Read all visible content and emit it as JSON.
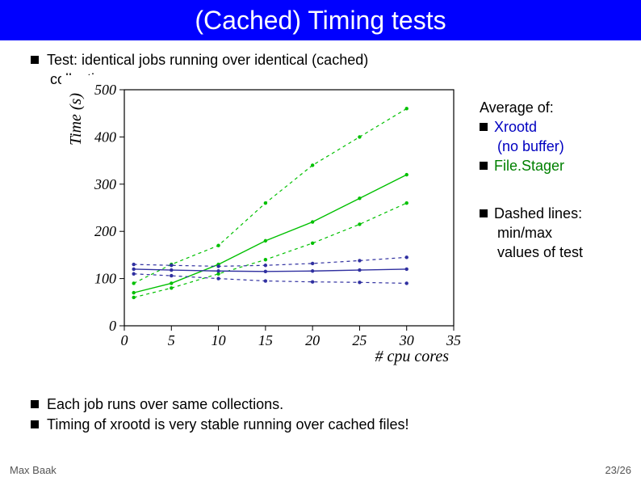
{
  "header": {
    "title": "(Cached) Timing tests"
  },
  "intro": {
    "line1": "Test: identical jobs running over identical (cached)",
    "line2": "collections"
  },
  "side": {
    "avg_label": "Average of:",
    "item1": "Xrootd",
    "item1_sub": "(no buffer)",
    "item2": "File.Stager",
    "dashed1": "Dashed lines:",
    "dashed2": "min/max",
    "dashed3": "values of test"
  },
  "bottom": {
    "b1": "Each job runs over same collections.",
    "b2": "Timing of xrootd is very stable running over cached files!"
  },
  "footer": {
    "author": "Max Baak",
    "page": "23/26"
  },
  "chart": {
    "type": "line",
    "xlabel": "# cpu cores",
    "ylabel": "Time (s)",
    "xlim": [
      0,
      35
    ],
    "ylim": [
      0,
      500
    ],
    "xticks": [
      0,
      5,
      10,
      15,
      20,
      25,
      30,
      35
    ],
    "yticks": [
      0,
      100,
      200,
      300,
      400,
      500
    ],
    "background_color": "#ffffff",
    "axis_color": "#000000",
    "title_fontsize": 20,
    "label_fontsize": 20,
    "series": [
      {
        "name": "filestager_avg",
        "color": "#00c000",
        "dash": "none",
        "width": 1.4,
        "x": [
          1,
          5,
          10,
          15,
          20,
          25,
          30
        ],
        "y": [
          70,
          90,
          130,
          180,
          220,
          270,
          320
        ]
      },
      {
        "name": "filestager_max",
        "color": "#00c000",
        "dash": "4,4",
        "width": 1.2,
        "x": [
          1,
          5,
          10,
          15,
          20,
          25,
          30
        ],
        "y": [
          90,
          130,
          170,
          260,
          340,
          400,
          460
        ]
      },
      {
        "name": "filestager_min",
        "color": "#00c000",
        "dash": "4,4",
        "width": 1.2,
        "x": [
          1,
          5,
          10,
          15,
          20,
          25,
          30
        ],
        "y": [
          60,
          80,
          110,
          140,
          175,
          215,
          260
        ]
      },
      {
        "name": "xrootd_avg",
        "color": "#3030a0",
        "dash": "none",
        "width": 1.4,
        "x": [
          1,
          5,
          10,
          15,
          20,
          25,
          30
        ],
        "y": [
          120,
          118,
          116,
          115,
          116,
          118,
          120
        ]
      },
      {
        "name": "xrootd_max",
        "color": "#3030a0",
        "dash": "4,4",
        "width": 1.2,
        "x": [
          1,
          5,
          10,
          15,
          20,
          25,
          30
        ],
        "y": [
          130,
          128,
          126,
          128,
          132,
          138,
          145
        ]
      },
      {
        "name": "xrootd_min",
        "color": "#3030a0",
        "dash": "4,4",
        "width": 1.2,
        "x": [
          1,
          5,
          10,
          15,
          20,
          25,
          30
        ],
        "y": [
          110,
          106,
          100,
          95,
          93,
          92,
          90
        ]
      }
    ]
  }
}
